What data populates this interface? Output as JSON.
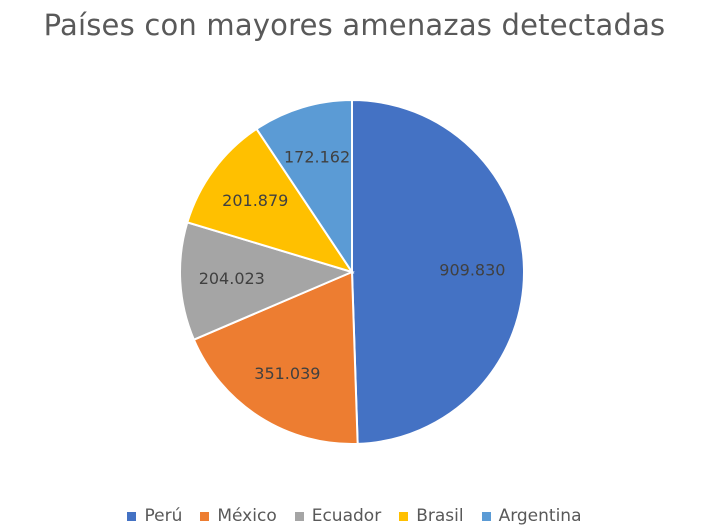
{
  "chart_data": {
    "type": "pie",
    "title": "Países con mayores amenazas detectadas",
    "categories": [
      "Perú",
      "México",
      "Ecuador",
      "Brasil",
      "Argentina"
    ],
    "values": [
      909830,
      351039,
      204023,
      201879,
      172162
    ],
    "data_labels": [
      "909.830",
      "351.039",
      "204.023",
      "201.879",
      "172.162"
    ],
    "colors": [
      "#4472C4",
      "#ED7D31",
      "#A5A5A5",
      "#FFC000",
      "#5B9BD5"
    ],
    "label_color": "#404040",
    "legend_position": "bottom",
    "start_angle": "top",
    "direction": "clockwise"
  }
}
